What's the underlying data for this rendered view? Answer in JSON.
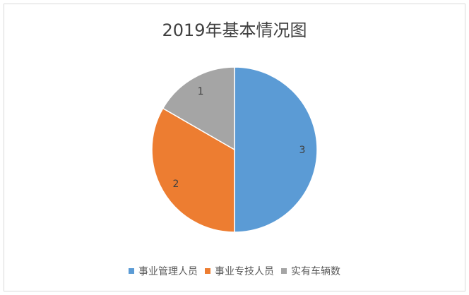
{
  "chart_data": {
    "type": "pie",
    "title": "2019年基本情况图",
    "categories": [
      "事业管理人员",
      "事业专技人员",
      "实有车辆数"
    ],
    "values": [
      3,
      2,
      1
    ],
    "colors": [
      "#5b9bd5",
      "#ed7d31",
      "#a5a5a5"
    ],
    "data_labels": [
      "3",
      "2",
      "1"
    ],
    "legend_position": "bottom"
  },
  "legend": [
    {
      "label": "事业管理人员",
      "color": "#5b9bd5"
    },
    {
      "label": "事业专技人员",
      "color": "#ed7d31"
    },
    {
      "label": "实有车辆数",
      "color": "#a5a5a5"
    }
  ]
}
